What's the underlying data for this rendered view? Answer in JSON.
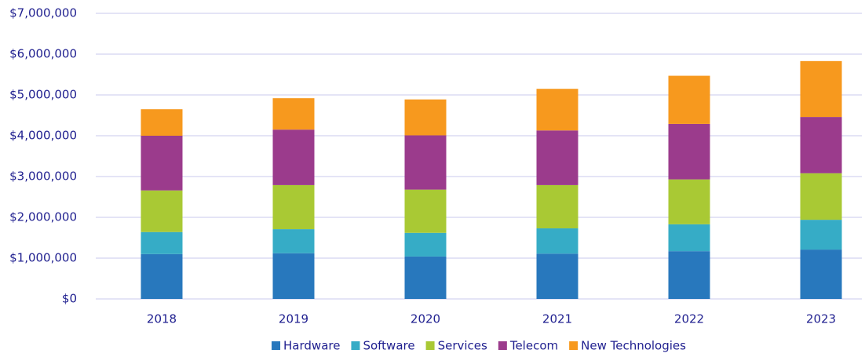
{
  "chart_data": {
    "type": "stacked_bar",
    "categories": [
      "2018",
      "2019",
      "2020",
      "2021",
      "2022",
      "2023"
    ],
    "series": [
      {
        "name": "Hardware",
        "color": "#2878bd",
        "values": [
          1100000,
          1120000,
          1040000,
          1110000,
          1170000,
          1210000
        ]
      },
      {
        "name": "Software",
        "color": "#36acc6",
        "values": [
          540000,
          590000,
          580000,
          620000,
          660000,
          730000
        ]
      },
      {
        "name": "Services",
        "color": "#a9c934",
        "values": [
          1020000,
          1080000,
          1060000,
          1060000,
          1100000,
          1140000
        ]
      },
      {
        "name": "Telecom",
        "color": "#9b3b8c",
        "values": [
          1340000,
          1360000,
          1330000,
          1340000,
          1360000,
          1380000
        ]
      },
      {
        "name": "New Technologies",
        "color": "#f7991e",
        "values": [
          650000,
          770000,
          880000,
          1020000,
          1180000,
          1370000
        ]
      }
    ],
    "ylim": [
      0,
      7000000
    ],
    "yticks": [
      {
        "value": 0,
        "label": "$0"
      },
      {
        "value": 1000000,
        "label": "$1,000,000"
      },
      {
        "value": 2000000,
        "label": "$2,000,000"
      },
      {
        "value": 3000000,
        "label": "$3,000,000"
      },
      {
        "value": 4000000,
        "label": "$4,000,000"
      },
      {
        "value": 5000000,
        "label": "$5,000,000"
      },
      {
        "value": 6000000,
        "label": "$6,000,000"
      },
      {
        "value": 7000000,
        "label": "$7,000,000"
      }
    ],
    "grid": true,
    "legend": "bottom"
  }
}
